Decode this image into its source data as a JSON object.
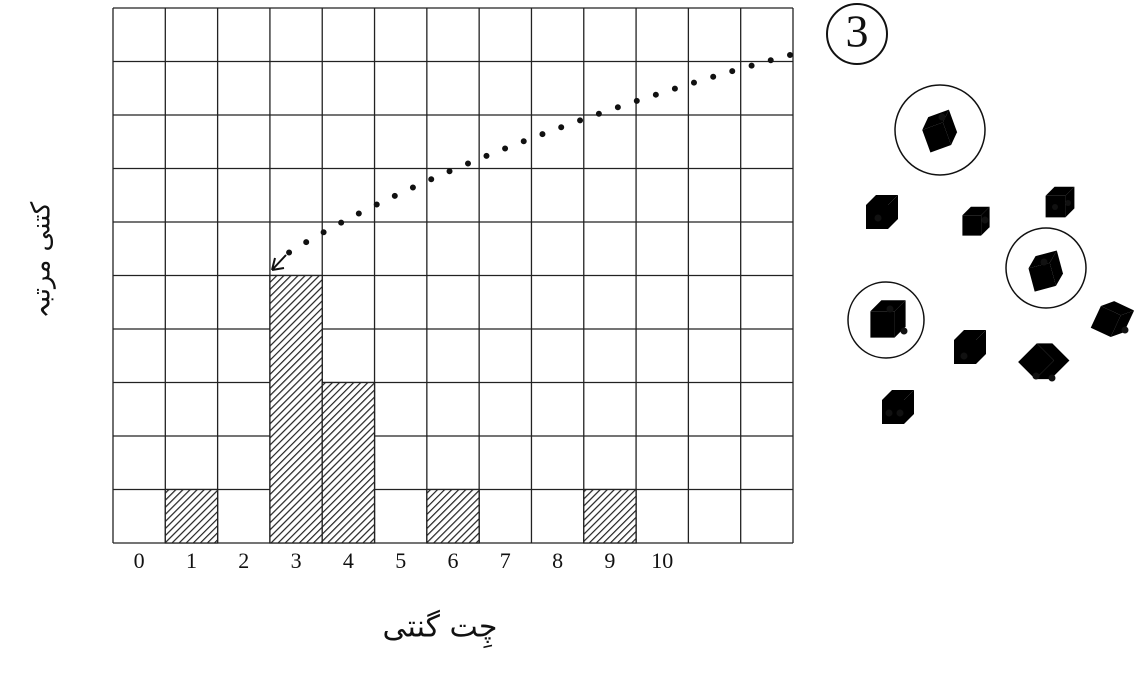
{
  "chart_data": {
    "type": "bar",
    "categories": [
      "0",
      "1",
      "2",
      "3",
      "4",
      "5",
      "6",
      "7",
      "8",
      "9",
      "10",
      null,
      null
    ],
    "values": [
      0,
      1,
      0,
      5,
      3,
      0,
      1,
      0,
      0,
      1,
      0,
      0,
      0
    ],
    "ylim": [
      0,
      10
    ],
    "x_label": "چِت گنتی",
    "y_label": "کتنی مرتبہ",
    "annotation": "3",
    "color": "#222222",
    "grid": true
  }
}
